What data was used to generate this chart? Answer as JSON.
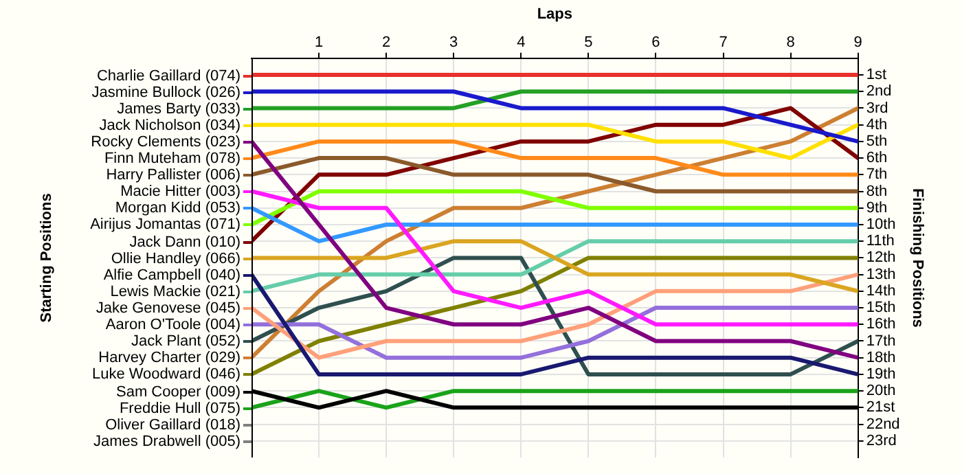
{
  "chart_data": {
    "type": "line",
    "xlabel": "Laps",
    "legend_title": "Starting Positions",
    "ylabel": "Finishing Positions",
    "x": [
      0,
      1,
      2,
      3,
      4,
      5,
      6,
      7,
      8,
      9
    ],
    "xlim": [
      0,
      9
    ],
    "xticks": [
      1,
      2,
      3,
      4,
      5,
      6,
      7,
      8,
      9
    ],
    "ylim": [
      24,
      0
    ],
    "yticks": [
      {
        "value": 1,
        "label": "1st"
      },
      {
        "value": 2,
        "label": "2nd"
      },
      {
        "value": 3,
        "label": "3rd"
      },
      {
        "value": 4,
        "label": "4th"
      },
      {
        "value": 5,
        "label": "5th"
      },
      {
        "value": 6,
        "label": "6th"
      },
      {
        "value": 7,
        "label": "7th"
      },
      {
        "value": 8,
        "label": "8th"
      },
      {
        "value": 9,
        "label": "9th"
      },
      {
        "value": 10,
        "label": "10th"
      },
      {
        "value": 11,
        "label": "11th"
      },
      {
        "value": 12,
        "label": "12th"
      },
      {
        "value": 13,
        "label": "13th"
      },
      {
        "value": 14,
        "label": "14th"
      },
      {
        "value": 15,
        "label": "15th"
      },
      {
        "value": 16,
        "label": "16th"
      },
      {
        "value": 17,
        "label": "17th"
      },
      {
        "value": 18,
        "label": "18th"
      },
      {
        "value": 19,
        "label": "19th"
      },
      {
        "value": 20,
        "label": "20th"
      },
      {
        "value": 21,
        "label": "21st"
      },
      {
        "value": 22,
        "label": "22nd"
      },
      {
        "value": 23,
        "label": "23rd"
      }
    ],
    "grid": true,
    "legend": "left",
    "marker": "none",
    "line_style": "solid",
    "series": [
      {
        "name": "Charlie Gaillard (074)",
        "color": "#e8302c",
        "values": [
          1,
          1,
          1,
          1,
          1,
          1,
          1,
          1,
          1,
          1
        ]
      },
      {
        "name": "Jasmine Bullock (026)",
        "color": "#1a1acc",
        "values": [
          2,
          2,
          2,
          2,
          3,
          3,
          3,
          3,
          4,
          5
        ]
      },
      {
        "name": "James Barty (033)",
        "color": "#24a024",
        "values": [
          3,
          3,
          3,
          3,
          2,
          2,
          2,
          2,
          2,
          2
        ]
      },
      {
        "name": "Jack Nicholson (034)",
        "color": "#ffe000",
        "values": [
          4,
          4,
          4,
          4,
          4,
          4,
          5,
          5,
          6,
          4
        ]
      },
      {
        "name": "Rocky Clements (023)",
        "color": "#800080",
        "values": [
          5,
          10,
          15,
          16,
          16,
          15,
          17,
          17,
          17,
          18
        ]
      },
      {
        "name": "Finn Muteham (078)",
        "color": "#ff8a1a",
        "values": [
          6,
          5,
          5,
          5,
          6,
          6,
          6,
          7,
          7,
          7
        ]
      },
      {
        "name": "Harry Pallister (006)",
        "color": "#8b5a2b",
        "values": [
          7,
          6,
          6,
          7,
          7,
          7,
          8,
          8,
          8,
          8
        ]
      },
      {
        "name": "Macie Hitter (003)",
        "color": "#ff1aff",
        "values": [
          8,
          9,
          9,
          14,
          15,
          14,
          16,
          16,
          16,
          16
        ]
      },
      {
        "name": "Morgan Kidd (053)",
        "color": "#3399ff",
        "values": [
          9,
          11,
          10,
          10,
          10,
          10,
          10,
          10,
          10,
          10
        ]
      },
      {
        "name": "Airijus Jomantas (071)",
        "color": "#80ff00",
        "values": [
          10,
          8,
          8,
          8,
          8,
          9,
          9,
          9,
          9,
          9
        ]
      },
      {
        "name": "Jack Dann (010)",
        "color": "#800000",
        "values": [
          11,
          7,
          7,
          6,
          5,
          5,
          4,
          4,
          3,
          6
        ]
      },
      {
        "name": "Ollie Handley (066)",
        "color": "#daa520",
        "values": [
          12,
          12,
          12,
          11,
          11,
          13,
          13,
          13,
          13,
          14
        ]
      },
      {
        "name": "Alfie Campbell (040)",
        "color": "#191970",
        "values": [
          13,
          19,
          19,
          19,
          19,
          18,
          18,
          18,
          18,
          19
        ]
      },
      {
        "name": "Lewis Mackie (021)",
        "color": "#66cdaa",
        "values": [
          14,
          13,
          13,
          13,
          13,
          11,
          11,
          11,
          11,
          11
        ]
      },
      {
        "name": "Jake Genovese (045)",
        "color": "#ffa07a",
        "values": [
          15,
          18,
          17,
          17,
          17,
          16,
          14,
          14,
          14,
          13
        ]
      },
      {
        "name": "Aaron O'Toole (004)",
        "color": "#9370db",
        "values": [
          16,
          16,
          18,
          18,
          18,
          17,
          15,
          15,
          15,
          15
        ]
      },
      {
        "name": "Jack Plant (052)",
        "color": "#2f4f4f",
        "values": [
          17,
          15,
          14,
          12,
          12,
          19,
          19,
          19,
          19,
          17
        ]
      },
      {
        "name": "Harvey Charter (029)",
        "color": "#cd7f32",
        "values": [
          18,
          14,
          11,
          9,
          9,
          8,
          7,
          6,
          5,
          3
        ]
      },
      {
        "name": "Luke Woodward (046)",
        "color": "#808000",
        "values": [
          19,
          17,
          16,
          15,
          14,
          12,
          12,
          12,
          12,
          12
        ]
      },
      {
        "name": "Sam Cooper (009)",
        "color": "#000000",
        "values": [
          20,
          21,
          20,
          21,
          21,
          21,
          21,
          21,
          21,
          21
        ]
      },
      {
        "name": "Freddie Hull (075)",
        "color": "#1aa31a",
        "values": [
          21,
          20,
          21,
          20,
          20,
          20,
          20,
          20,
          20,
          20
        ]
      },
      {
        "name": "Oliver Gaillard (018)",
        "color": "#808080",
        "values": [
          null,
          null,
          null,
          null,
          null,
          null,
          null,
          null,
          null,
          null
        ]
      },
      {
        "name": "James Drabwell (005)",
        "color": "#808080",
        "values": [
          null,
          null,
          null,
          null,
          null,
          null,
          null,
          null,
          null,
          null
        ]
      }
    ]
  }
}
